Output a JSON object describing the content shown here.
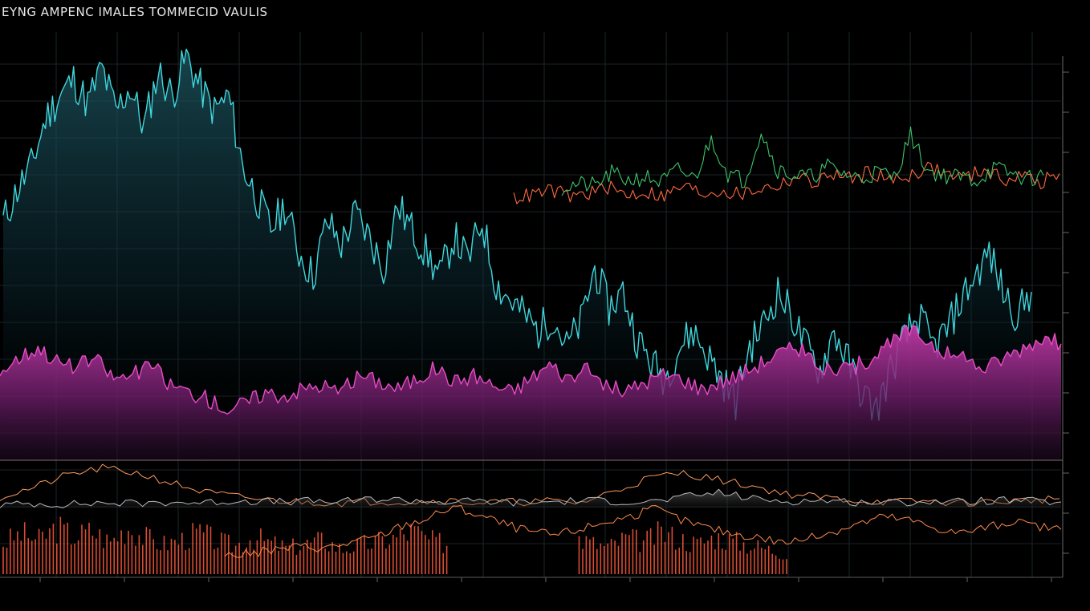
{
  "title": "EYNG AMPENC IMALES TOMMECID VAULIS",
  "chart_data": [
    {
      "type": "line",
      "panel": "main",
      "grid": true,
      "series": [
        {
          "color": "#3fd6dc",
          "style": "area",
          "values": [
            58,
            66,
            72,
            84,
            90,
            94,
            88,
            97,
            86,
            92,
            82,
            96,
            90,
            100,
            92,
            86,
            90,
            72,
            64,
            56,
            62,
            50,
            44,
            58,
            52,
            60,
            54,
            46,
            62,
            56,
            50,
            44,
            54,
            48,
            58,
            42,
            38,
            34,
            30,
            34,
            26,
            32,
            46,
            36,
            40,
            28,
            22,
            18,
            26,
            30,
            24,
            18,
            12,
            26,
            32,
            40,
            34,
            26,
            20,
            30,
            22,
            14,
            10,
            20,
            28,
            34,
            26,
            30,
            38,
            44,
            50,
            40,
            34,
            40
          ]
        },
        {
          "color": "#ff6a3d",
          "style": "line",
          "values": [
            28,
            30,
            33,
            29,
            31,
            35,
            30,
            32,
            29,
            36,
            31,
            33,
            30,
            34,
            36,
            42,
            38,
            44,
            40,
            46,
            39,
            43,
            48,
            44,
            41,
            47,
            40,
            43,
            38,
            44
          ]
        },
        {
          "color": "#3ec46a",
          "style": "line",
          "values": [
            30,
            32,
            31,
            38,
            34,
            36,
            33,
            40,
            35,
            58,
            38,
            34,
            62,
            40,
            37,
            36,
            42,
            38,
            35,
            39,
            36,
            60,
            40,
            37,
            36,
            34,
            41,
            38,
            35,
            37
          ]
        },
        {
          "color": "#e84cc4",
          "style": "area",
          "values": [
            52,
            60,
            66,
            58,
            54,
            60,
            48,
            50,
            56,
            44,
            40,
            36,
            30,
            34,
            40,
            38,
            42,
            44,
            40,
            50,
            46,
            42,
            48,
            54,
            46,
            50,
            44,
            40,
            48,
            56,
            48,
            52,
            44,
            40,
            46,
            50,
            48,
            42,
            46,
            50,
            56,
            62,
            66,
            58,
            50,
            54,
            60,
            68,
            76,
            70,
            62,
            58,
            54,
            60,
            66,
            72,
            68
          ]
        }
      ],
      "axis_labels_right": [
        "",
        "",
        "",
        "",
        "",
        "",
        "",
        "",
        "",
        "",
        "",
        "",
        ""
      ]
    },
    {
      "type": "line",
      "panel": "lower",
      "grid": true,
      "series": [
        {
          "color": "#ff9a5a",
          "style": "line",
          "values": [
            40,
            52,
            68,
            76,
            70,
            58,
            46,
            40,
            36,
            34,
            33,
            35,
            34,
            36,
            33,
            34,
            35,
            33,
            48,
            64,
            70,
            62,
            54,
            44,
            40,
            36,
            34,
            35,
            33,
            34,
            36,
            38
          ]
        },
        {
          "color": "#9a9aa0",
          "style": "area",
          "values": [
            30,
            32,
            31,
            33,
            32,
            34,
            33,
            36,
            34,
            35,
            34,
            38,
            36,
            34,
            35,
            33,
            34,
            36,
            35,
            34,
            40,
            46,
            38,
            35,
            36,
            34,
            33,
            35,
            34,
            36,
            35,
            34
          ]
        },
        {
          "color": "#ff5a3a",
          "style": "bars",
          "values": [
            60,
            78,
            66,
            90,
            72,
            84,
            62,
            92,
            70,
            58,
            66,
            80,
            64,
            54,
            72,
            60,
            50,
            58,
            66,
            48,
            56,
            62,
            70,
            84,
            64,
            58,
            50,
            46,
            40,
            48,
            56,
            66,
            74,
            60,
            52,
            70,
            62,
            80,
            68,
            58,
            72,
            64,
            56,
            48,
            40
          ]
        },
        {
          "color": "#ff8a4a",
          "style": "line",
          "values": [
            20,
            22,
            26,
            30,
            28,
            34,
            40,
            52,
            60,
            72,
            64,
            54,
            46,
            42,
            48,
            56,
            62,
            70,
            58,
            50,
            44,
            40,
            34,
            38,
            46,
            54,
            62,
            58,
            50,
            44,
            50,
            56,
            52,
            48
          ]
        }
      ]
    }
  ]
}
